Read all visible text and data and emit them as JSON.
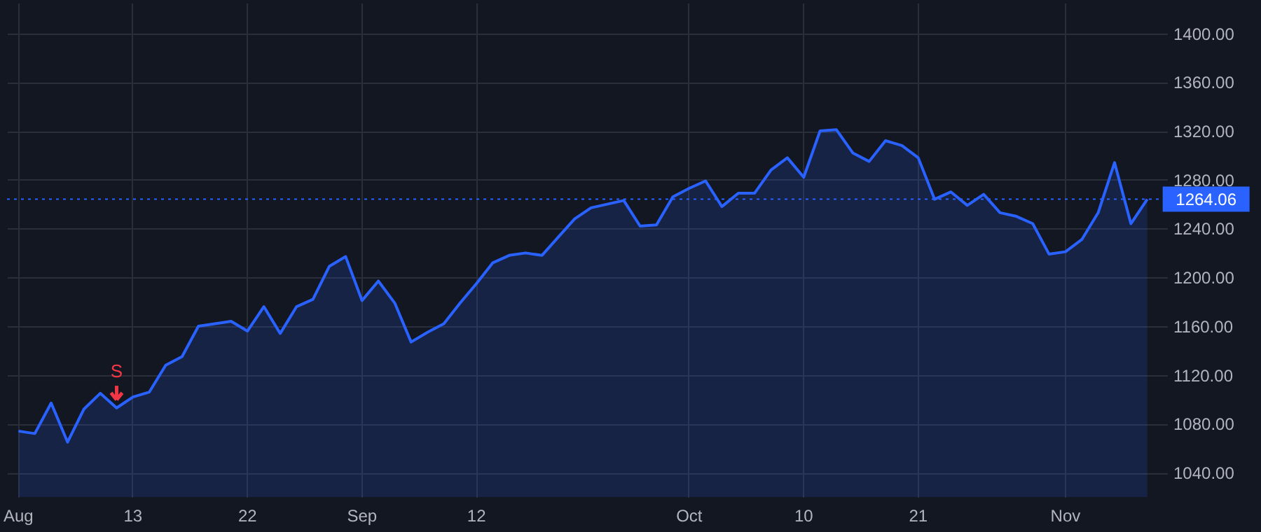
{
  "chart_data": {
    "type": "area",
    "categories": [
      "Aug",
      null,
      null,
      null,
      null,
      null,
      null,
      "13",
      null,
      null,
      null,
      null,
      null,
      null,
      "22",
      null,
      null,
      null,
      null,
      null,
      null,
      "Sep",
      null,
      null,
      null,
      null,
      null,
      null,
      "12",
      null,
      null,
      null,
      null,
      null,
      null,
      null,
      null,
      null,
      null,
      null,
      null,
      "Oct",
      null,
      null,
      null,
      null,
      null,
      null,
      "10",
      null,
      null,
      null,
      null,
      null,
      null,
      "21",
      null,
      null,
      null,
      null,
      null,
      null,
      null,
      null,
      "Nov",
      null,
      null,
      null,
      null,
      null
    ],
    "series": [
      {
        "color": "#2962ff",
        "values": [
          1074,
          1072,
          1097,
          1065,
          1092,
          1105,
          1093,
          1102,
          1106,
          1128,
          1135,
          1160,
          1162,
          1164,
          1156,
          1176,
          1154,
          1176,
          1182,
          1209,
          1217,
          1181,
          1197,
          1179,
          1147,
          1155,
          1162,
          1179,
          1195,
          1212,
          1218,
          1220,
          1218,
          1233,
          1248,
          1257,
          1260,
          1263,
          1242,
          1243,
          1266,
          1273,
          1279,
          1258,
          1269,
          1269,
          1288,
          1298,
          1282,
          1320,
          1321,
          1302,
          1295,
          1312,
          1308,
          1298,
          1264,
          1270,
          1259,
          1268,
          1253,
          1250,
          1244,
          1219,
          1221,
          1231,
          1253,
          1294,
          1244,
          1264.06
        ]
      }
    ],
    "ylim": [
      1020,
      1425
    ],
    "yticks": [
      {
        "value": 1040,
        "label": "1040.00"
      },
      {
        "value": 1080,
        "label": "1080.00"
      },
      {
        "value": 1120,
        "label": "1120.00"
      },
      {
        "value": 1160,
        "label": "1160.00"
      },
      {
        "value": 1200,
        "label": "1200.00"
      },
      {
        "value": 1240,
        "label": "1240.00"
      },
      {
        "value": 1280,
        "label": "1280.00"
      },
      {
        "value": 1320,
        "label": "1320.00"
      },
      {
        "value": 1360,
        "label": "1360.00"
      },
      {
        "value": 1400,
        "label": "1400.00"
      }
    ],
    "ref_lines": [
      {
        "axis": "y",
        "value": 1264.06,
        "label": "1264.06",
        "color": "#2962ff",
        "line_style": "dotted"
      }
    ],
    "annotations": [
      {
        "text": "S",
        "y": 1092.8
      }
    ],
    "grid": true
  }
}
